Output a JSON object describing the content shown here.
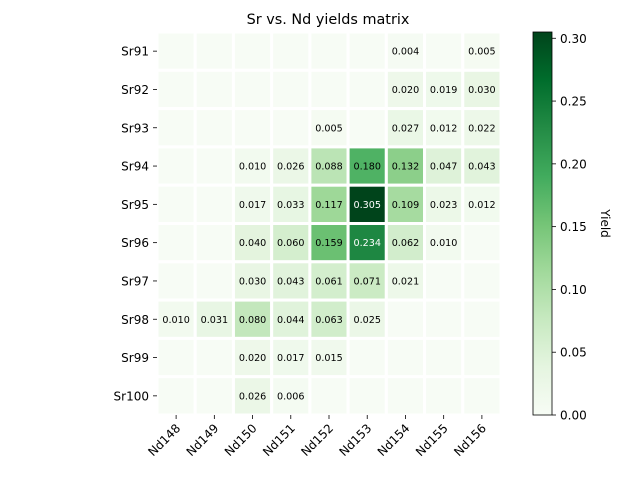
{
  "chart_data": {
    "type": "heatmap",
    "title": "Sr vs. Nd yields matrix",
    "x_categories": [
      "Nd148",
      "Nd149",
      "Nd150",
      "Nd151",
      "Nd152",
      "Nd153",
      "Nd154",
      "Nd155",
      "Nd156"
    ],
    "y_categories": [
      "Sr91",
      "Sr92",
      "Sr93",
      "Sr94",
      "Sr95",
      "Sr96",
      "Sr97",
      "Sr98",
      "Sr99",
      "Sr100"
    ],
    "values": [
      [
        0,
        0,
        0,
        0,
        0,
        0,
        0.004,
        0,
        0.005
      ],
      [
        0,
        0,
        0,
        0,
        0,
        0,
        0.02,
        0.019,
        0.03
      ],
      [
        0,
        0,
        0,
        0,
        0.005,
        0,
        0.027,
        0.012,
        0.022
      ],
      [
        0,
        0,
        0.01,
        0.026,
        0.088,
        0.18,
        0.132,
        0.047,
        0.043
      ],
      [
        0,
        0,
        0.017,
        0.033,
        0.117,
        0.305,
        0.109,
        0.023,
        0.012
      ],
      [
        0,
        0,
        0.04,
        0.06,
        0.159,
        0.234,
        0.062,
        0.01,
        0
      ],
      [
        0,
        0,
        0.03,
        0.043,
        0.061,
        0.071,
        0.021,
        0,
        0
      ],
      [
        0.01,
        0.031,
        0.08,
        0.044,
        0.063,
        0.025,
        0,
        0,
        0
      ],
      [
        0,
        0,
        0.02,
        0.017,
        0.015,
        0,
        0,
        0,
        0
      ],
      [
        0,
        0,
        0.026,
        0.006,
        0,
        0,
        0,
        0,
        0
      ]
    ],
    "value_format_decimals": 3,
    "label_zero_cells": false,
    "colormap": "Greens",
    "colormap_stops": [
      "#f7fcf5",
      "#e5f5e0",
      "#c7e9c0",
      "#a1d99b",
      "#74c476",
      "#41ab5d",
      "#238b45",
      "#006d2c",
      "#00441b"
    ],
    "cell_separator_color": "#ffffff",
    "text_color_dark": "#000000",
    "text_color_light": "#ffffff",
    "colorbar": {
      "label": "Yield",
      "min": 0,
      "max": 0.305,
      "ticks": [
        0.0,
        0.05,
        0.1,
        0.15,
        0.2,
        0.25,
        0.3
      ],
      "tick_labels": [
        "0.00",
        "0.05",
        "0.10",
        "0.15",
        "0.20",
        "0.25",
        "0.30"
      ]
    },
    "grid": false
  }
}
